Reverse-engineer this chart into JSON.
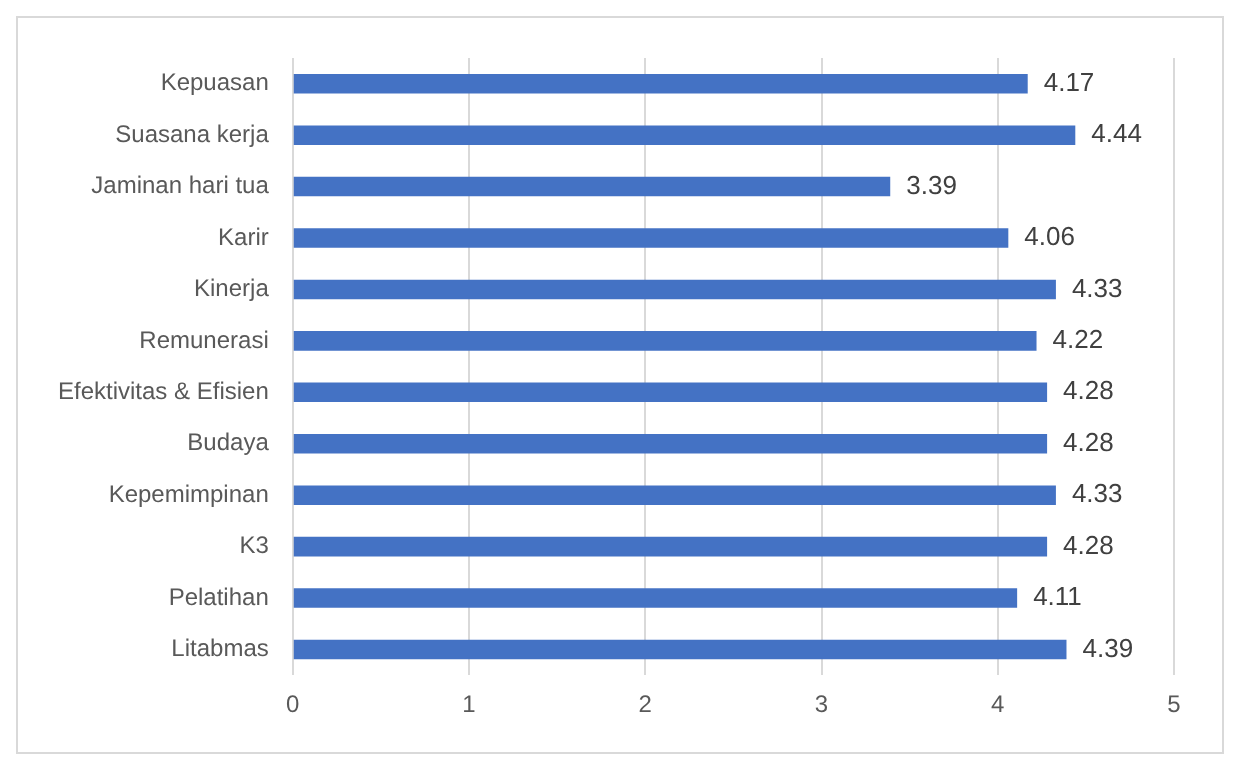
{
  "chart_data": {
    "type": "bar",
    "orientation": "horizontal",
    "categories": [
      "Kepuasan",
      "Suasana kerja",
      "Jaminan hari tua",
      "Karir",
      "Kinerja",
      "Remunerasi",
      "Efektivitas & Efisien",
      "Budaya",
      "Kepemimpinan",
      "K3",
      "Pelatihan",
      "Litabmas"
    ],
    "values": [
      4.17,
      4.44,
      3.39,
      4.06,
      4.33,
      4.22,
      4.28,
      4.28,
      4.33,
      4.28,
      4.11,
      4.39
    ],
    "color": "#4472c4",
    "xlim": [
      0,
      5
    ],
    "xticks": [
      0,
      1,
      2,
      3,
      4,
      5
    ],
    "grid": "x",
    "data_labels": true
  }
}
